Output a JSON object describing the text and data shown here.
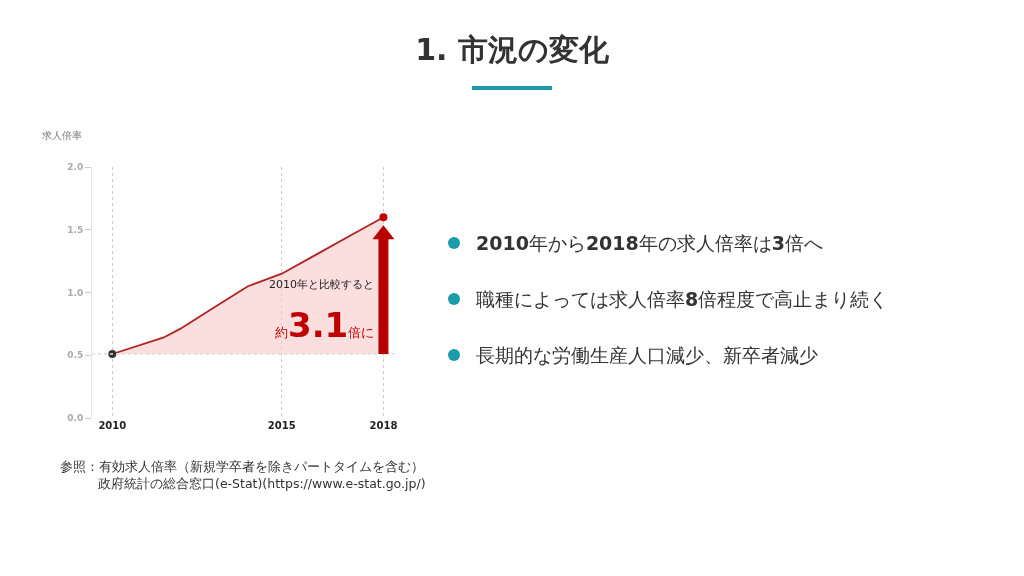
{
  "chart_data": {
    "type": "area",
    "title": "1. 市況の変化",
    "ylabel": "求人倍率",
    "x": [
      2010,
      2011.5,
      2012,
      2013,
      2014,
      2015,
      2016,
      2017,
      2018
    ],
    "series": [
      {
        "marker": "none",
        "color": "#b22222",
        "values": [
          0.51,
          0.64,
          0.71,
          0.88,
          1.05,
          1.15,
          1.3,
          1.45,
          1.6
        ]
      },
      {
        "type": "scatter",
        "marker": "circle",
        "x": [
          2010,
          2018
        ],
        "colors": [
          "#333333",
          "#c00000"
        ],
        "values": [
          0.51,
          1.6
        ]
      }
    ],
    "ref_lines": [
      {
        "axis": "y",
        "value": 0.51,
        "color": "#dddddd",
        "line_style": "dotted"
      }
    ],
    "xlim": [
      2009.4,
      2018.4
    ],
    "ylim": [
      0,
      2.0
    ],
    "xticks": [
      2010,
      2015,
      2018
    ],
    "yticks": [
      {
        "value": 0,
        "label": "0.0"
      },
      0.5,
      {
        "value": 1,
        "label": "1.0"
      },
      1.5,
      {
        "value": 2,
        "label": "2.0"
      }
    ],
    "grid": "x",
    "line_style": "solid",
    "annotations": [
      "2010年と比較すると",
      "約3.1倍に",
      "2010年から2018年の求人倍率は3倍へ",
      "職種によっては求人倍率8倍程度で高止まり続く",
      "長期的な労働生産人口減少、新卒者減少",
      "参照：有効求人倍率（新規学卒者を除きパートタイムを含む）",
      "政府統計の総合窓口(e-Stat)(https://www.e-stat.go.jp/)"
    ]
  }
}
